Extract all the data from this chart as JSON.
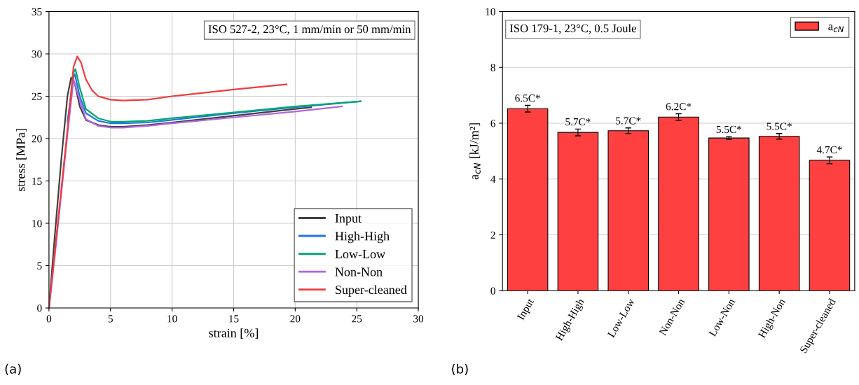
{
  "chart_data": [
    {
      "type": "line",
      "xlabel": "strain [%]",
      "ylabel": "stress [MPa]",
      "xlim": [
        0,
        30
      ],
      "ylim": [
        0,
        35
      ],
      "xticks": [
        0,
        5,
        10,
        15,
        20,
        25,
        30
      ],
      "yticks": [
        0,
        5,
        10,
        15,
        20,
        25,
        30,
        35
      ],
      "grid": true,
      "legend": "bottom right",
      "line_style": "solid",
      "marker": "none",
      "annotations": [
        "ISO 527-2, 23°C, 1 mm/min or 50 mm/min",
        "(a)"
      ],
      "series": [
        {
          "name": "Input",
          "color": "#404040",
          "x": [
            0,
            0.5,
            1.0,
            1.5,
            1.8,
            2.1,
            2.5,
            3.0,
            4.0,
            5.0,
            6.0,
            8.0,
            10.0,
            15.0,
            20.0,
            21.3
          ],
          "values": [
            0,
            9,
            17.5,
            25,
            27.2,
            26.5,
            23.8,
            22.2,
            21.6,
            21.4,
            21.4,
            21.6,
            21.9,
            22.7,
            23.5,
            23.7
          ]
        },
        {
          "name": "High-High",
          "color": "#1f77e0",
          "x": [
            1.5,
            2.0,
            2.1,
            2.5,
            3.0,
            4.0,
            5.0,
            6.0,
            8.0,
            10.0,
            15.0,
            20.0,
            25.3
          ],
          "values": [
            22,
            27.3,
            27.6,
            25.0,
            23.0,
            22.1,
            21.8,
            21.8,
            21.9,
            22.2,
            23.0,
            23.7,
            24.4
          ]
        },
        {
          "name": "Low-Low",
          "color": "#00a86b",
          "x": [
            1.7,
            2.0,
            2.15,
            2.5,
            3.0,
            4.0,
            5.0,
            6.0,
            8.0,
            10.0,
            15.0,
            20.0,
            25.3
          ],
          "values": [
            24,
            27.8,
            28.2,
            26.0,
            23.5,
            22.4,
            22.0,
            22.0,
            22.1,
            22.4,
            23.1,
            23.8,
            24.4
          ]
        },
        {
          "name": "Non-Non",
          "color": "#b366e0",
          "x": [
            0,
            0.5,
            1.0,
            1.5,
            2.0,
            2.5,
            3.0,
            4.0,
            5.0,
            6.0,
            8.0,
            10.0,
            15.0,
            20.0,
            23.8
          ],
          "values": [
            0,
            6.5,
            13.5,
            20.5,
            27.0,
            24.5,
            22.3,
            21.5,
            21.3,
            21.3,
            21.5,
            21.8,
            22.5,
            23.2,
            23.8
          ]
        },
        {
          "name": "Super-cleaned",
          "color": "#f03c3c",
          "x": [
            0,
            0.5,
            1.0,
            1.5,
            2.0,
            2.3,
            2.6,
            3.0,
            3.5,
            4.0,
            5.0,
            6.0,
            8.0,
            10.0,
            15.0,
            19.3
          ],
          "values": [
            0,
            7,
            14,
            21,
            28.5,
            29.7,
            29.0,
            27.0,
            25.7,
            25.0,
            24.6,
            24.5,
            24.6,
            25.0,
            25.8,
            26.4
          ]
        }
      ]
    },
    {
      "type": "bar",
      "ylabel": "a$_{cN}$ [kJ/m²]",
      "ylim": [
        0,
        10
      ],
      "yticks": [
        0,
        2,
        4,
        6,
        8,
        10
      ],
      "grid": "y",
      "legend": "top right",
      "categories": [
        "Input",
        "High-High",
        "Low-Low",
        "Non-Non",
        "Low-Non",
        "High-Non",
        "Super-cleaned"
      ],
      "annotations": [
        "ISO 179-1, 23°C, 0.5 Joule",
        "(b)"
      ],
      "series": [
        {
          "name": "a$_{cN}$",
          "color": "#ff4040",
          "values": [
            6.52,
            5.67,
            5.73,
            6.22,
            5.47,
            5.53,
            4.67
          ],
          "errors": [
            0.12,
            0.12,
            0.1,
            0.12,
            0.05,
            0.1,
            0.12
          ],
          "value_labels": [
            "6.5C*",
            "5.7C*",
            "5.7C*",
            "6.2C*",
            "5.5C*",
            "5.5C*",
            "4.7C*"
          ]
        }
      ]
    }
  ]
}
